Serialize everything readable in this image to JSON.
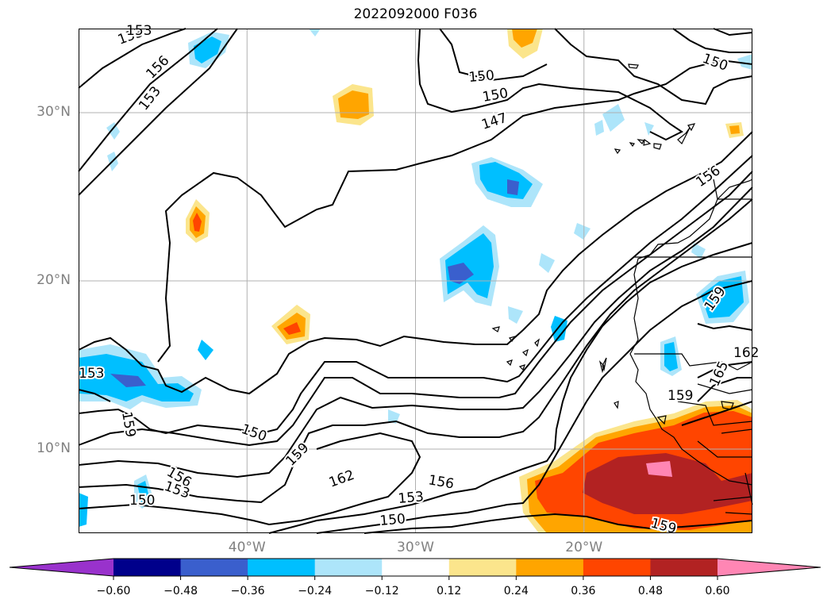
{
  "title": "2022092000 F036",
  "map": {
    "extent": {
      "lon_min": -50,
      "lon_max": -10,
      "lat_min": 5,
      "lat_max": 35
    },
    "grid": true,
    "lat_ticks": [
      {
        "lat": 30,
        "label": "30°N"
      },
      {
        "lat": 20,
        "label": "20°N"
      },
      {
        "lat": 10,
        "label": "10°N"
      }
    ],
    "lon_ticks": [
      {
        "lon": -40,
        "label": "40°W"
      },
      {
        "lon": -30,
        "label": "30°W"
      },
      {
        "lon": -20,
        "label": "20°W"
      }
    ],
    "contour_labels": [
      "153",
      "156",
      "153",
      "153",
      "150",
      "150",
      "147",
      "150",
      "156",
      "159",
      "162",
      "165",
      "159",
      "153",
      "159",
      "150",
      "159",
      "162",
      "156",
      "153",
      "150",
      "156",
      "153",
      "150",
      "159"
    ]
  },
  "colorbar": {
    "ticks": [
      "−0.60",
      "−0.48",
      "−0.36",
      "−0.24",
      "−0.12",
      "0.12",
      "0.24",
      "0.36",
      "0.48",
      "0.60"
    ],
    "colors": [
      "#9932cc",
      "#00008b",
      "#3a5fcd",
      "#00bfff",
      "#ade5fa",
      "#ffffff",
      "#fbe58c",
      "#ffa500",
      "#ff4500",
      "#b22222",
      "#ff86b4"
    ],
    "extend": "both"
  }
}
